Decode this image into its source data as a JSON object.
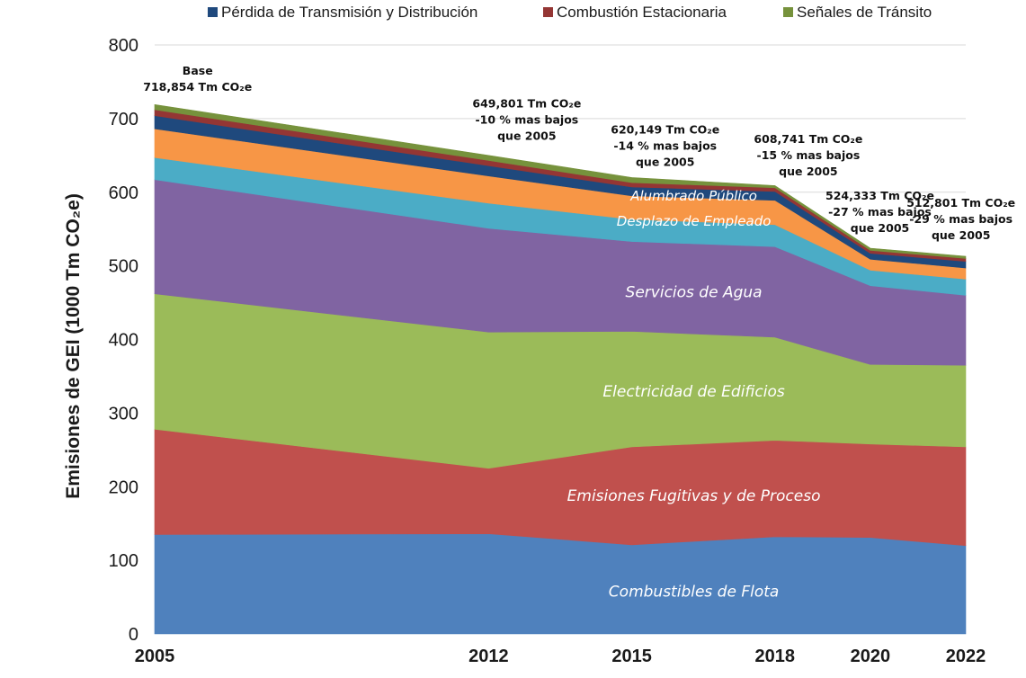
{
  "chart_data": {
    "type": "area",
    "stacked": true,
    "x": [
      "2005",
      "2012",
      "2015",
      "2018",
      "2020",
      "2022"
    ],
    "x_positions": [
      2005,
      2012,
      2015,
      2018,
      2020,
      2022
    ],
    "xlabel": "",
    "ylabel": "Emisiones de GEI (1000 Tm CO₂e)",
    "ylim": [
      0,
      800
    ],
    "yticks": [
      0,
      100,
      200,
      300,
      400,
      500,
      600,
      700,
      800
    ],
    "grid": "horizontal",
    "legend_position": "top",
    "series": [
      {
        "name": "Combustibles de Flota",
        "color": "#4f81bd",
        "values": [
          135,
          136,
          121,
          132,
          131,
          120
        ]
      },
      {
        "name": "Emisiones Fugitivas y de Proceso",
        "color": "#c0504d",
        "values": [
          143,
          89,
          133,
          131,
          127,
          134
        ]
      },
      {
        "name": "Electricidad de Edificios",
        "color": "#9bbb59",
        "values": [
          184,
          185,
          157,
          140,
          108,
          111
        ]
      },
      {
        "name": "Servicios de Agua",
        "color": "#8064a2",
        "values": [
          155,
          141,
          122,
          123,
          107,
          95
        ]
      },
      {
        "name": "Desplazo de Empleado",
        "color": "#4bacc6",
        "values": [
          30,
          34,
          30,
          30,
          21,
          22
        ]
      },
      {
        "name": "Alumbrado Público",
        "color": "#f79646",
        "values": [
          39,
          37,
          32,
          33,
          15,
          15
        ]
      },
      {
        "name": "Pérdida de Transmisión y Distribución",
        "color": "#1f497d",
        "values": [
          18,
          14,
          12,
          12,
          8,
          9
        ]
      },
      {
        "name": "Combustión Estacionaria",
        "color": "#943634",
        "values": [
          8,
          7,
          6,
          5,
          4,
          4
        ]
      },
      {
        "name": "Señales de Tránsito",
        "color": "#76923c",
        "values": [
          7,
          7,
          7,
          3,
          3,
          3
        ]
      }
    ],
    "legend": [
      {
        "name": "Pérdida de Transmisión y Distribución",
        "color": "#1f497d"
      },
      {
        "name": "Combustión Estacionaria",
        "color": "#943634"
      },
      {
        "name": "Señales de Tránsito",
        "color": "#76923c"
      }
    ],
    "inline_labels": [
      {
        "series": "Alumbrado Público",
        "text": "Alumbrado Público",
        "x": 2016.3,
        "y": 596
      },
      {
        "series": "Desplazo de Empleado",
        "text": "Desplazo de Empleado",
        "x": 2016.3,
        "y": 562
      },
      {
        "series": "Servicios de Agua",
        "text": "Servicios de Agua",
        "x": 2016.3,
        "y": 465
      },
      {
        "series": "Electricidad de Edificios",
        "text": "Electricidad de Edificios",
        "x": 2016.3,
        "y": 330
      },
      {
        "series": "Emisiones Fugitivas y de Proceso",
        "text": "Emisiones Fugitivas y de Proceso",
        "x": 2016.3,
        "y": 188
      },
      {
        "series": "Combustibles de Flota",
        "text": "Combustibles de Flota",
        "x": 2016.3,
        "y": 58
      }
    ],
    "annotations": [
      {
        "x": 2005.9,
        "y": 760,
        "lines": [
          "Base",
          "718,854 Tm CO₂e"
        ]
      },
      {
        "x": 2012.8,
        "y": 715,
        "lines": [
          "649,801 Tm CO₂e",
          "-10 % mas bajos",
          "que 2005"
        ]
      },
      {
        "x": 2015.7,
        "y": 680,
        "lines": [
          "620,149 Tm CO₂e",
          "-14 % mas bajos",
          "que 2005"
        ]
      },
      {
        "x": 2018.7,
        "y": 667,
        "lines": [
          "608,741 Tm CO₂e",
          "-15 % mas bajos",
          "que 2005"
        ]
      },
      {
        "x": 2020.2,
        "y": 590,
        "lines": [
          "524,333 Tm CO₂e",
          "-27 % mas bajos",
          "que 2005"
        ]
      },
      {
        "x": 2021.9,
        "y": 580,
        "lines": [
          "512,801 Tm CO₂e",
          "-29 % mas bajos",
          "que 2005"
        ]
      }
    ]
  }
}
